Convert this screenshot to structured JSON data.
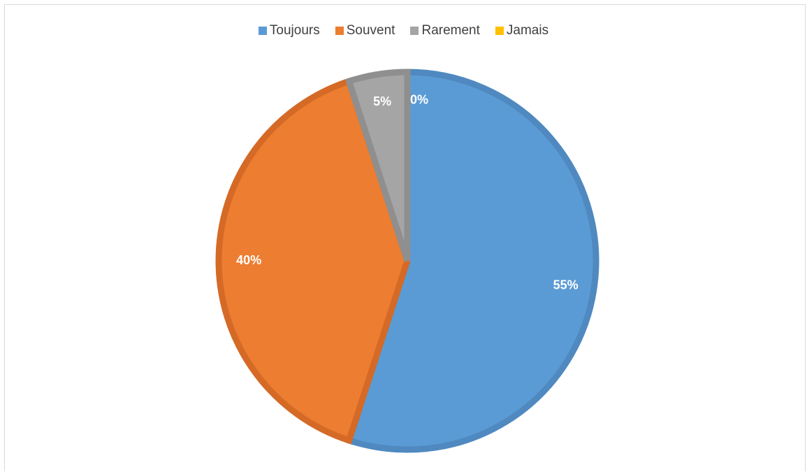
{
  "chart_data": {
    "type": "pie",
    "categories": [
      "Toujours",
      "Souvent",
      "Rarement",
      "Jamais"
    ],
    "values": [
      55,
      40,
      5,
      0
    ],
    "data_labels": [
      "55%",
      "40%",
      "5%",
      "0%"
    ],
    "colors": [
      "#5b9bd5",
      "#ed7d31",
      "#a5a5a5",
      "#ffc000"
    ],
    "border_colors": [
      "#4f89c0",
      "#d46a26",
      "#8f8f8f",
      "#e0a800"
    ],
    "legend_position": "top",
    "start_angle": "12 o'clock",
    "direction": "clockwise"
  }
}
